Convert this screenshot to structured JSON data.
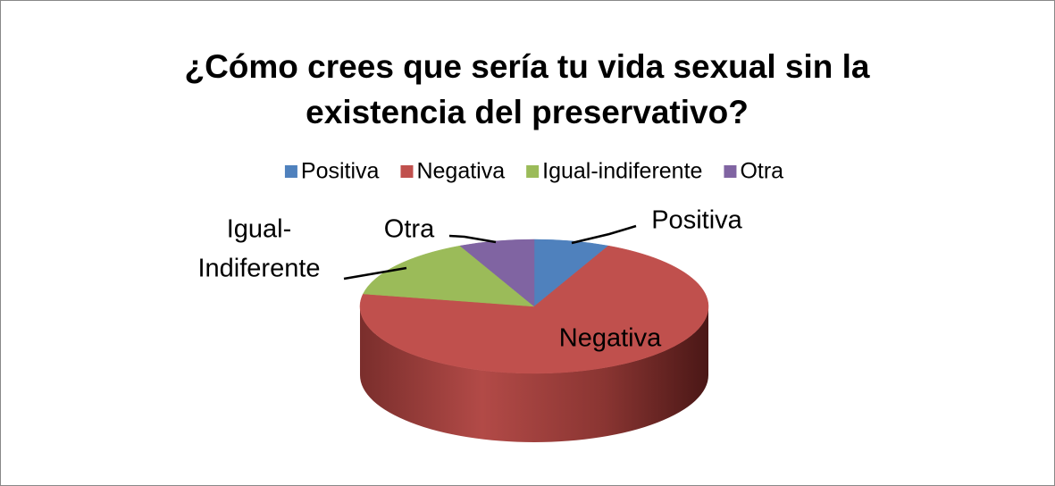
{
  "chart_data": {
    "type": "pie3d",
    "title": [
      "¿Cómo crees que sería tu vida sexual sin la",
      "existencia del preservativo?"
    ],
    "categories": [
      "Positiva",
      "Negativa",
      "Igual-indiferente",
      "Otra"
    ],
    "values": [
      7,
      71,
      15,
      7
    ],
    "colors": [
      "#4f81bd",
      "#c0504d",
      "#9bbb59",
      "#8064a2"
    ],
    "data_labels": [
      "Positiva",
      "Negativa",
      [
        "Igual-",
        "Indiferente"
      ],
      "Otra"
    ],
    "legend": "top"
  }
}
